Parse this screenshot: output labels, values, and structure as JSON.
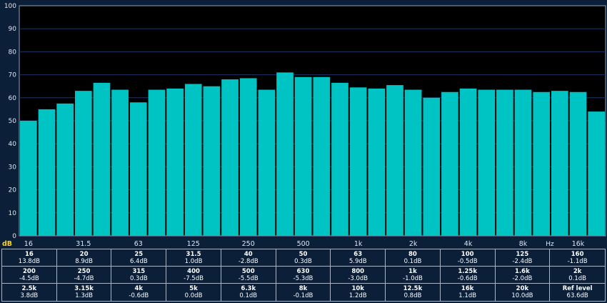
{
  "chart_data": {
    "type": "bar",
    "categories": [
      "16",
      "20",
      "25",
      "31.5",
      "40",
      "50",
      "63",
      "80",
      "100",
      "125",
      "160",
      "200",
      "250",
      "315",
      "400",
      "500",
      "630",
      "800",
      "1k",
      "1.25k",
      "1.6k",
      "2k",
      "2.5k",
      "3.15k",
      "4k",
      "5k",
      "6.3k",
      "8k",
      "10k",
      "12.5k",
      "16k",
      "20k"
    ],
    "values": [
      50,
      55,
      57.5,
      63,
      66.5,
      63.5,
      58,
      63.5,
      64,
      66,
      65,
      68,
      68.5,
      63.5,
      71,
      69,
      69,
      66.5,
      64.5,
      64,
      65.5,
      63.5,
      60,
      62.5,
      64,
      63.5,
      63.5,
      63.5,
      62.5,
      63,
      62.5,
      54
    ],
    "ylim": [
      0,
      100
    ],
    "yticks": [
      "0",
      "10",
      "20",
      "30",
      "40",
      "50",
      "60",
      "70",
      "80",
      "90",
      "100"
    ],
    "ylabel": "dB",
    "xlabel": "Hz",
    "xticks": [
      {
        "label": "16",
        "index": 0
      },
      {
        "label": "31.5",
        "index": 3
      },
      {
        "label": "63",
        "index": 6
      },
      {
        "label": "125",
        "index": 9
      },
      {
        "label": "250",
        "index": 12
      },
      {
        "label": "500",
        "index": 15
      },
      {
        "label": "1k",
        "index": 18
      },
      {
        "label": "2k",
        "index": 21
      },
      {
        "label": "4k",
        "index": 24
      },
      {
        "label": "8k",
        "index": 27
      },
      {
        "label": "16k",
        "index": 30
      }
    ],
    "grid": true,
    "colors": {
      "bar": "#00c4c4",
      "plot_background": "#000000",
      "page_background": "#0b1f38",
      "grid": "#1e3560",
      "db_label": "#ffd700"
    }
  },
  "table": [
    {
      "freq": "16",
      "value": "13.8dB"
    },
    {
      "freq": "20",
      "value": "8.9dB"
    },
    {
      "freq": "25",
      "value": "6.4dB"
    },
    {
      "freq": "31.5",
      "value": "1.0dB"
    },
    {
      "freq": "40",
      "value": "-2.8dB"
    },
    {
      "freq": "50",
      "value": "0.3dB"
    },
    {
      "freq": "63",
      "value": "5.9dB"
    },
    {
      "freq": "80",
      "value": "0.1dB"
    },
    {
      "freq": "100",
      "value": "-0.5dB"
    },
    {
      "freq": "125",
      "value": "-2.4dB"
    },
    {
      "freq": "160",
      "value": "-1.1dB"
    },
    {
      "freq": "200",
      "value": "-4.5dB"
    },
    {
      "freq": "250",
      "value": "-4.7dB"
    },
    {
      "freq": "315",
      "value": "0.3dB"
    },
    {
      "freq": "400",
      "value": "-7.5dB"
    },
    {
      "freq": "500",
      "value": "-5.5dB"
    },
    {
      "freq": "630",
      "value": "-5.3dB"
    },
    {
      "freq": "800",
      "value": "-3.0dB"
    },
    {
      "freq": "1k",
      "value": "-1.0dB"
    },
    {
      "freq": "1.25k",
      "value": "-0.6dB"
    },
    {
      "freq": "1.6k",
      "value": "-2.0dB"
    },
    {
      "freq": "2k",
      "value": "0.1dB"
    },
    {
      "freq": "2.5k",
      "value": "3.8dB"
    },
    {
      "freq": "3.15k",
      "value": "1.3dB"
    },
    {
      "freq": "4k",
      "value": "-0.6dB"
    },
    {
      "freq": "5k",
      "value": "0.0dB"
    },
    {
      "freq": "6.3k",
      "value": "0.1dB"
    },
    {
      "freq": "8k",
      "value": "-0.1dB"
    },
    {
      "freq": "10k",
      "value": "1.2dB"
    },
    {
      "freq": "12.5k",
      "value": "0.8dB"
    },
    {
      "freq": "16k",
      "value": "1.1dB"
    },
    {
      "freq": "20k",
      "value": "10.0dB"
    },
    {
      "freq": "Ref level",
      "value": "63.6dB"
    }
  ]
}
